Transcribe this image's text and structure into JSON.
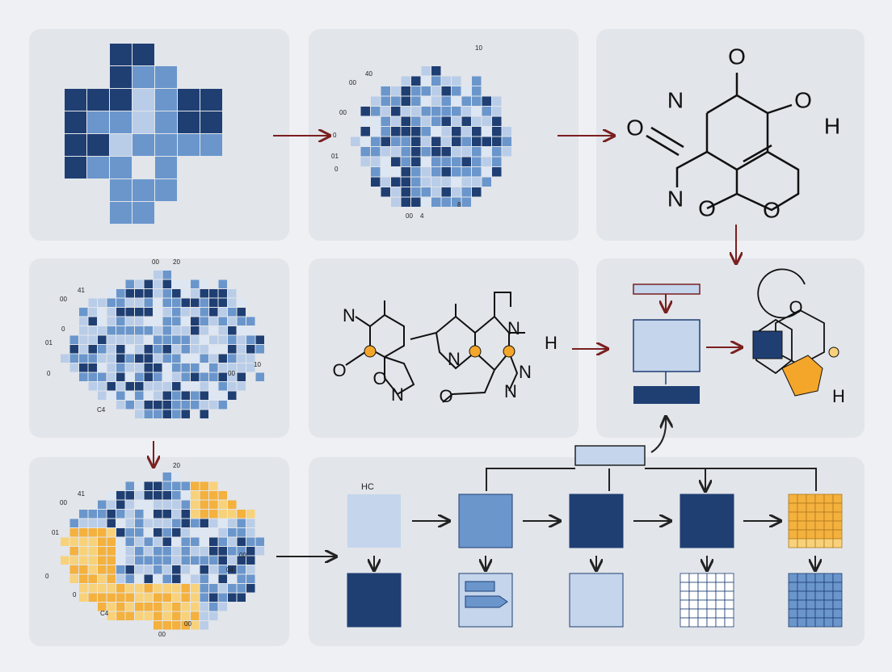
{
  "heatmap_top": {
    "labels": [
      "00",
      "40",
      "10",
      "00",
      "0",
      "01",
      "0",
      "00",
      "4",
      "8"
    ]
  },
  "molecule_top": {
    "atoms": [
      "O",
      "N",
      "O",
      "O",
      "H",
      "N",
      "O",
      "O"
    ]
  },
  "heatmap_left": {
    "labels": [
      "00",
      "20",
      "41",
      "00",
      "0",
      "01",
      "0",
      "00",
      "10",
      "C4"
    ]
  },
  "molecule_mid": {
    "atoms": [
      "N",
      "O",
      "O",
      "N",
      "N",
      "N",
      "O",
      "N",
      "N",
      "H"
    ]
  },
  "schematic": {
    "atoms": [
      "O",
      "H"
    ]
  },
  "heatmap_yellow": {
    "labels": [
      "20",
      "41",
      "00",
      "0",
      "01",
      "0",
      "04",
      "00",
      "00",
      "C4",
      "00"
    ]
  },
  "pipeline": {
    "label": "HC"
  }
}
